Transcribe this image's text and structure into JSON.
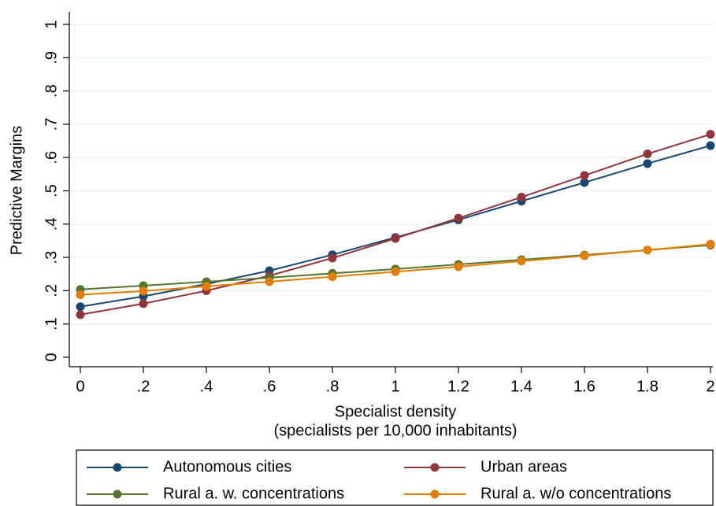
{
  "chart_data": {
    "type": "line",
    "ylabel": "Predictive Margins",
    "xlabel": [
      "Specialist density",
      "(specialists per 10,000 inhabitants)"
    ],
    "x": [
      0,
      0.2,
      0.4,
      0.6,
      0.8,
      1,
      1.2,
      1.4,
      1.6,
      1.8,
      2
    ],
    "series": [
      {
        "name": "Autonomous cities",
        "color": "#1a476f",
        "values": [
          0.152,
          0.183,
          0.22,
          0.26,
          0.308,
          0.36,
          0.413,
          0.469,
          0.525,
          0.582,
          0.636
        ]
      },
      {
        "name": "Urban areas",
        "color": "#90353b",
        "values": [
          0.128,
          0.161,
          0.2,
          0.245,
          0.298,
          0.357,
          0.418,
          0.481,
          0.546,
          0.611,
          0.67
        ]
      },
      {
        "name": "Rural a. w. concentrations",
        "color": "#55752f",
        "values": [
          0.204,
          0.215,
          0.227,
          0.239,
          0.252,
          0.265,
          0.279,
          0.293,
          0.307,
          0.322,
          0.337
        ]
      },
      {
        "name": "Rural a. w/o concentrations",
        "color": "#e37e00",
        "values": [
          0.188,
          0.199,
          0.213,
          0.227,
          0.242,
          0.257,
          0.272,
          0.289,
          0.305,
          0.322,
          0.34
        ]
      }
    ],
    "xlim": [
      0,
      2
    ],
    "xticks": [
      0,
      {
        "value": 0.2,
        "label": ".2"
      },
      {
        "value": 0.4,
        "label": ".4"
      },
      {
        "value": 0.6,
        "label": ".6"
      },
      {
        "value": 0.8,
        "label": ".8"
      },
      1,
      1.2,
      1.4,
      1.6,
      1.8,
      2
    ],
    "ylim": [
      0,
      1
    ],
    "yticks": [
      0,
      {
        "value": 0.1,
        "label": ".1"
      },
      {
        "value": 0.2,
        "label": ".2"
      },
      {
        "value": 0.3,
        "label": ".3"
      },
      {
        "value": 0.4,
        "label": ".4"
      },
      {
        "value": 0.5,
        "label": ".5"
      },
      {
        "value": 0.6,
        "label": ".6"
      },
      {
        "value": 0.7,
        "label": ".7"
      },
      {
        "value": 0.8,
        "label": ".8"
      },
      {
        "value": 0.9,
        "label": ".9"
      },
      1
    ],
    "grid": true,
    "legend": "bottom"
  }
}
